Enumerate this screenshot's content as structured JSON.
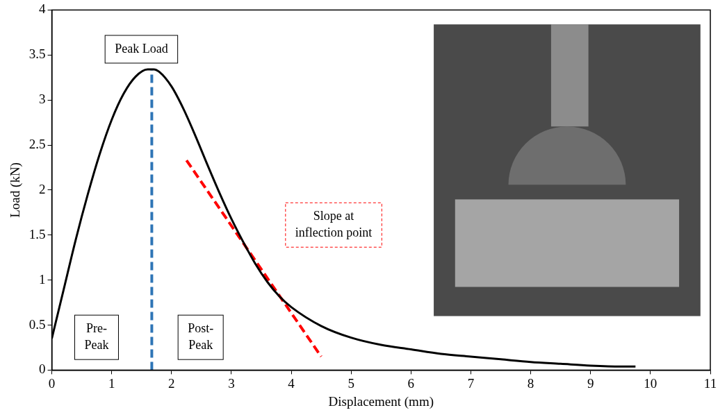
{
  "chart_data": {
    "type": "line",
    "x_label": "Displacement (mm)",
    "y_label": "Load (kN)",
    "xlim": [
      0,
      11
    ],
    "xticks": [
      0,
      1,
      2,
      3,
      4,
      5,
      6,
      7,
      8,
      9,
      10,
      11
    ],
    "ylim": [
      0,
      4
    ],
    "yticks": [
      0,
      0.5,
      1,
      1.5,
      2,
      2.5,
      3,
      3.5,
      4
    ],
    "grid": false,
    "series": [
      {
        "color": "#000000",
        "line_style": "solid",
        "x": [
          0,
          0.2,
          0.4,
          0.6,
          0.8,
          1.0,
          1.2,
          1.4,
          1.6,
          1.7,
          1.8,
          2.0,
          2.2,
          2.4,
          2.6,
          2.8,
          3.0,
          3.2,
          3.4,
          3.6,
          3.8,
          4.0,
          4.5,
          5.0,
          5.5,
          6.0,
          6.5,
          7.0,
          7.5,
          8.0,
          8.5,
          9.0,
          9.5,
          9.75
        ],
        "values": [
          0.35,
          0.9,
          1.45,
          1.95,
          2.4,
          2.78,
          3.07,
          3.26,
          3.34,
          3.34,
          3.31,
          3.15,
          2.9,
          2.6,
          2.28,
          1.97,
          1.68,
          1.42,
          1.18,
          0.98,
          0.82,
          0.7,
          0.49,
          0.36,
          0.28,
          0.23,
          0.18,
          0.15,
          0.12,
          0.09,
          0.07,
          0.05,
          0.04,
          0.04
        ]
      },
      {
        "color": "#2e75b6",
        "line_style": "dashed",
        "x": [
          1.67,
          1.67
        ],
        "values": [
          0,
          3.34
        ]
      },
      {
        "color": "#ff0000",
        "line_style": "dashed",
        "x": [
          2.25,
          4.5
        ],
        "values": [
          2.33,
          0.15
        ]
      }
    ],
    "annotations": [
      {
        "text": "Peak Load",
        "color": "#000000",
        "line_style": "solid"
      },
      {
        "text": "Pre-Peak",
        "color": "#000000",
        "line_style": "solid"
      },
      {
        "text": "Post-Peak",
        "color": "#000000",
        "line_style": "solid"
      },
      {
        "text": "Slope at inflection point",
        "color": "#ff0000",
        "line_style": "dashed"
      }
    ]
  }
}
